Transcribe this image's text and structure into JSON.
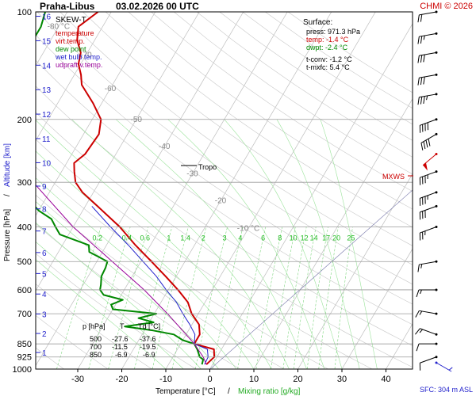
{
  "header": {
    "station": "Praha-Libus",
    "datetime": "03.02.2026 00 UTC",
    "copyright": "CHMI © 2026"
  },
  "legend": {
    "title": "SKEW-T",
    "items": [
      {
        "label": "temperature",
        "color": "#cc0000"
      },
      {
        "label": "virt.temp.",
        "color": "#cc0000"
      },
      {
        "label": "dew point",
        "color": "#008800"
      },
      {
        "label": "wet bulb temp.",
        "color": "#2222cc"
      },
      {
        "label": "udpraft v.temp.",
        "color": "#990099"
      }
    ]
  },
  "surface": {
    "title": "Surface:",
    "lines": [
      {
        "text": "press: 971.3 hPa",
        "color": "#000000"
      },
      {
        "text": "temp: -1.4 °C",
        "color": "#cc0000"
      },
      {
        "text": "dwpt: -2.4 °C",
        "color": "#008800"
      },
      {
        "text": "t-conv: -1.2 °C",
        "color": "#000000"
      },
      {
        "text": "t-mxfc: 5.4 °C",
        "color": "#000000"
      }
    ]
  },
  "table": {
    "header": [
      "p [hPa]",
      "T",
      "Td [°C]"
    ],
    "rows": [
      [
        "500",
        "-27.6",
        "-37.6"
      ],
      [
        "700",
        "-11.5",
        "-19.5"
      ],
      [
        "850",
        "-6.9",
        "-6.9"
      ]
    ]
  },
  "annotations": {
    "tropo": "Tropo",
    "mxws": "MXWS",
    "sfc": "SFC: 304 m ASL"
  },
  "chart_data": {
    "type": "line",
    "xlabel": "Temperature [°C]",
    "xlabel_sep": "/",
    "xlabel2": "Mixing ratio [g/kg]",
    "ylabel": "Pressure [hPa]",
    "ylabel_sep": "/",
    "ylabel2": "Altitude [km]",
    "pressure_ticks": [
      100,
      200,
      300,
      400,
      500,
      600,
      700,
      850,
      925,
      1000
    ],
    "temp_ticks": [
      -30,
      -20,
      -10,
      0,
      10,
      20,
      30,
      40
    ],
    "altitude_ticks": [
      1,
      2,
      3,
      4,
      5,
      6,
      7,
      8,
      9,
      10,
      11,
      12,
      13,
      14,
      15,
      16
    ],
    "mixing_ratio_labels": [
      "0.2",
      "0.4",
      "0.6",
      "1",
      "1.4",
      "2",
      "3",
      "4",
      "6",
      "8",
      "10",
      "12",
      "14",
      "17",
      "20",
      "25"
    ],
    "isotherm_labels": [
      "-80 °C",
      "-70",
      "-60",
      "-50",
      "-40",
      "-30",
      "-20",
      "-10 °C"
    ],
    "series": [
      {
        "key": "temperature",
        "color": "#cc0000",
        "points": [
          [
            971,
            -1.4
          ],
          [
            925,
            -0.6
          ],
          [
            880,
            -1.7
          ],
          [
            850,
            -6.9
          ],
          [
            800,
            -6.9
          ],
          [
            750,
            -8.4
          ],
          [
            700,
            -11.5
          ],
          [
            650,
            -13.9
          ],
          [
            600,
            -17.8
          ],
          [
            550,
            -22.4
          ],
          [
            500,
            -27.6
          ],
          [
            450,
            -33.4
          ],
          [
            400,
            -39.4
          ],
          [
            350,
            -47.2
          ],
          [
            320,
            -52.5
          ],
          [
            300,
            -55.4
          ],
          [
            280,
            -57.1
          ],
          [
            265,
            -58.3
          ],
          [
            250,
            -57.0
          ],
          [
            220,
            -56.5
          ],
          [
            200,
            -58.0
          ],
          [
            180,
            -62.0
          ],
          [
            160,
            -67.0
          ],
          [
            150,
            -68.5
          ],
          [
            140,
            -70.5
          ],
          [
            130,
            -71.5
          ],
          [
            120,
            -74.0
          ],
          [
            110,
            -75.5
          ],
          [
            100,
            -73.0
          ]
        ]
      },
      {
        "key": "dew point",
        "color": "#008800",
        "points": [
          [
            971,
            -2.4
          ],
          [
            940,
            -2.8
          ],
          [
            925,
            -3.9
          ],
          [
            880,
            -5.5
          ],
          [
            850,
            -6.9
          ],
          [
            830,
            -10.0
          ],
          [
            800,
            -12.8
          ],
          [
            780,
            -18.0
          ],
          [
            760,
            -25.0
          ],
          [
            740,
            -19.0
          ],
          [
            720,
            -23.0
          ],
          [
            700,
            -19.5
          ],
          [
            680,
            -30.0
          ],
          [
            660,
            -31.0
          ],
          [
            640,
            -29.0
          ],
          [
            620,
            -34.0
          ],
          [
            600,
            -35.5
          ],
          [
            580,
            -36.0
          ],
          [
            550,
            -37.0
          ],
          [
            520,
            -37.2
          ],
          [
            500,
            -37.6
          ],
          [
            470,
            -43.0
          ],
          [
            450,
            -44.0
          ],
          [
            420,
            -52.0
          ],
          [
            400,
            -54.0
          ],
          [
            380,
            -56.0
          ],
          [
            360,
            -60.0
          ],
          [
            340,
            -63.0
          ],
          [
            320,
            -66.0
          ],
          [
            300,
            -69.0
          ],
          [
            280,
            -70.0
          ],
          [
            260,
            -72.0
          ],
          [
            240,
            -72.0
          ],
          [
            220,
            -74.0
          ],
          [
            200,
            -77.0
          ],
          [
            170,
            -80.0
          ],
          [
            150,
            -82.0
          ],
          [
            130,
            -84.0
          ],
          [
            110,
            -84.0
          ],
          [
            100,
            -85.0
          ]
        ]
      },
      {
        "key": "wet bulb temp.",
        "color": "#2222cc",
        "points": [
          [
            971,
            -1.8
          ],
          [
            925,
            -2.0
          ],
          [
            880,
            -3.2
          ],
          [
            850,
            -6.9
          ],
          [
            800,
            -8.0
          ],
          [
            750,
            -10.5
          ],
          [
            700,
            -13.5
          ],
          [
            650,
            -16.5
          ],
          [
            600,
            -20.5
          ],
          [
            550,
            -24.5
          ],
          [
            500,
            -29.5
          ],
          [
            450,
            -35.0
          ],
          [
            400,
            -41.5
          ],
          [
            350,
            -48.5
          ]
        ]
      },
      {
        "key": "udpraft v.temp.",
        "color": "#990099",
        "points": [
          [
            971,
            -1.4
          ],
          [
            925,
            -3.1
          ],
          [
            850,
            -6.9
          ],
          [
            800,
            -10.0
          ],
          [
            700,
            -17.0
          ],
          [
            600,
            -25.5
          ],
          [
            500,
            -36.5
          ],
          [
            400,
            -50.0
          ],
          [
            300,
            -65.0
          ],
          [
            250,
            -74.0
          ],
          [
            200,
            -83.0
          ],
          [
            150,
            -92.0
          ],
          [
            100,
            -100.0
          ]
        ]
      }
    ],
    "wind_barbs": [
      {
        "p": 960,
        "dir": 120,
        "speed": 5
      },
      {
        "p": 925,
        "dir": 250,
        "speed": 10
      },
      {
        "p": 850,
        "dir": 270,
        "speed": 10
      },
      {
        "p": 800,
        "dir": 290,
        "speed": 15
      },
      {
        "p": 700,
        "dir": 280,
        "speed": 15
      },
      {
        "p": 600,
        "dir": 270,
        "speed": 15
      },
      {
        "p": 500,
        "dir": 260,
        "speed": 15
      },
      {
        "p": 400,
        "dir": 250,
        "speed": 25
      },
      {
        "p": 350,
        "dir": 250,
        "speed": 30
      },
      {
        "p": 320,
        "dir": 250,
        "speed": 35
      },
      {
        "p": 280,
        "dir": 250,
        "speed": 35
      },
      {
        "p": 250,
        "dir": 230,
        "speed": 50
      },
      {
        "p": 220,
        "dir": 240,
        "speed": 40
      },
      {
        "p": 200,
        "dir": 250,
        "speed": 40
      },
      {
        "p": 170,
        "dir": 260,
        "speed": 35
      },
      {
        "p": 150,
        "dir": 260,
        "speed": 30
      },
      {
        "p": 130,
        "dir": 260,
        "speed": 30
      },
      {
        "p": 115,
        "dir": 260,
        "speed": 25
      },
      {
        "p": 100,
        "dir": 260,
        "speed": 20
      }
    ]
  }
}
